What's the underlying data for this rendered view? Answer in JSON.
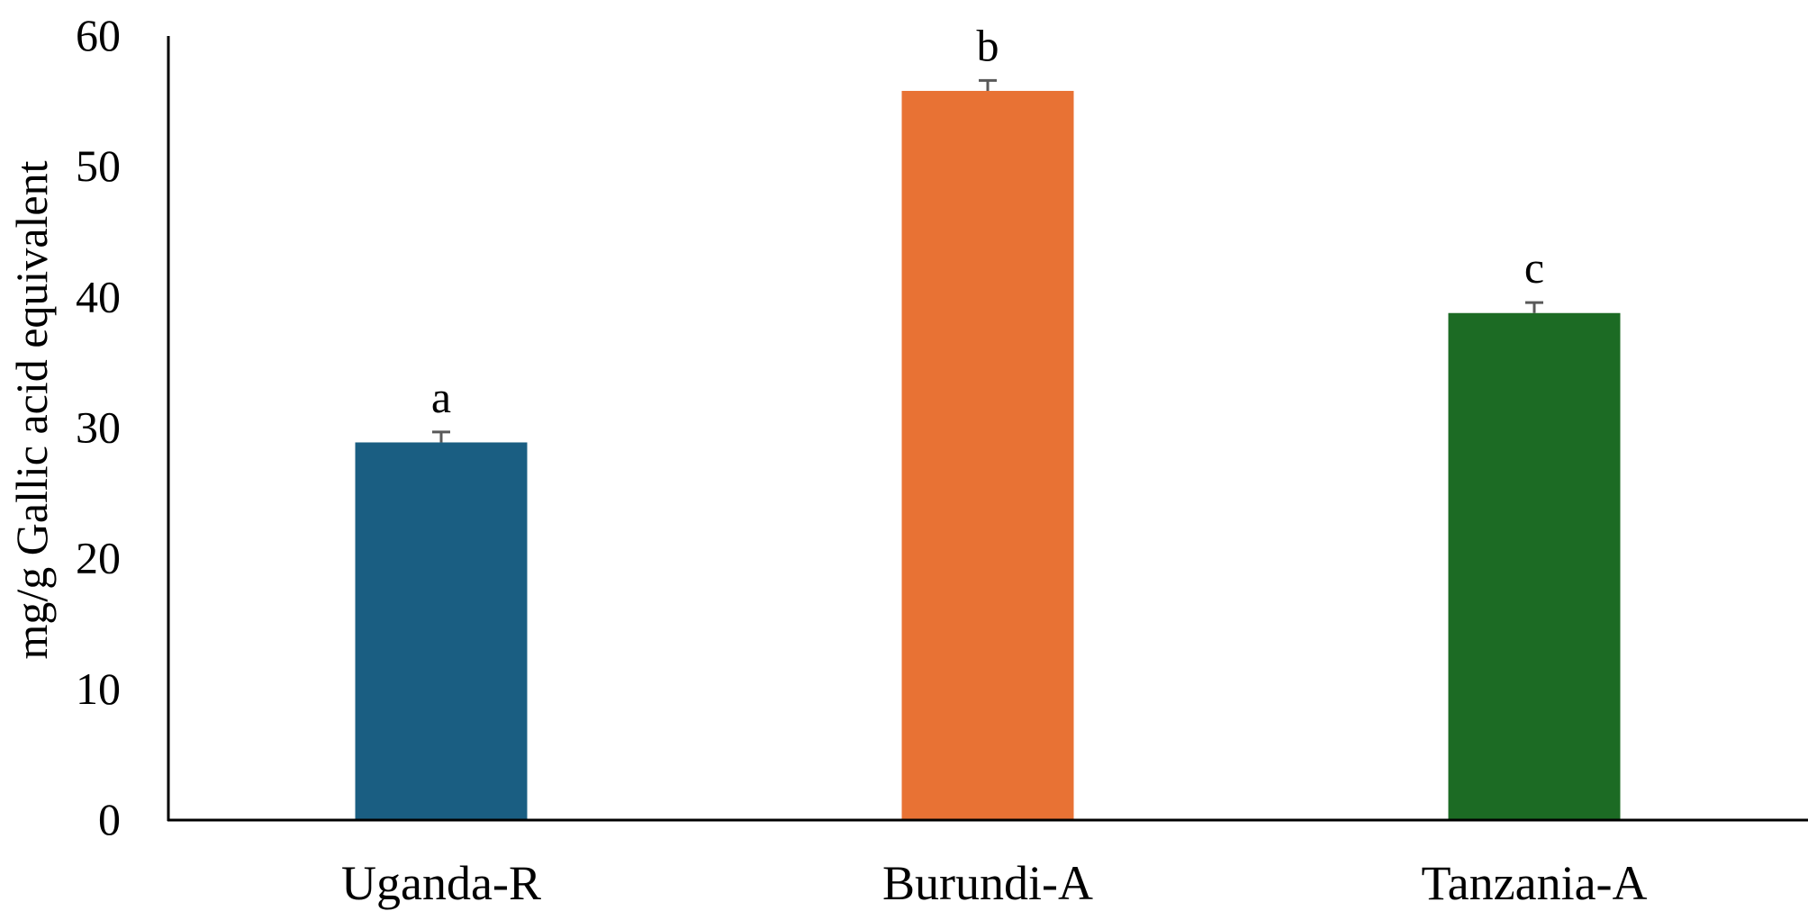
{
  "chart_data": {
    "type": "bar",
    "title": "",
    "xlabel": "",
    "ylabel": "mg/g Gallic acid equivalent",
    "ylim": [
      0,
      60
    ],
    "yticks": [
      0,
      10,
      20,
      30,
      40,
      50,
      60
    ],
    "grid": false,
    "legend": "none",
    "categories": [
      "Uganda-R",
      "Burundi-A",
      "Tanzania-A"
    ],
    "values": [
      28.9,
      55.8,
      38.8
    ],
    "error": [
      0.8,
      0.8,
      0.8
    ],
    "significance_labels": [
      "a",
      "b",
      "c"
    ],
    "colors": [
      "#1a5e82",
      "#e87234",
      "#1c6b24"
    ],
    "error_color": "#595959",
    "axis_color": "#000000"
  }
}
